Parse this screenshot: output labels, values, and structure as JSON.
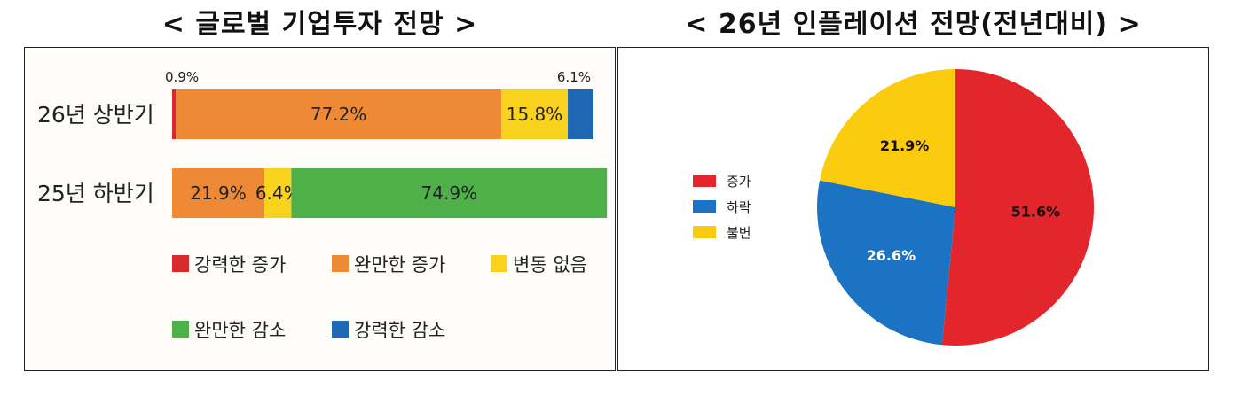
{
  "chart_data": [
    {
      "type": "bar",
      "orientation": "horizontal",
      "stacked": true,
      "title": "< 글로벌 기업투자 전망 >",
      "categories": [
        "26년 상반기",
        "25년 하반기"
      ],
      "series": [
        {
          "name": "강력한 증가",
          "color": "#d92b2b",
          "values": [
            0.9,
            0
          ]
        },
        {
          "name": "완만한 증가",
          "color": "#ee8a35",
          "values": [
            77.2,
            21.9
          ]
        },
        {
          "name": "변동 없음",
          "color": "#f8d21d",
          "values": [
            15.8,
            6.4
          ]
        },
        {
          "name": "완만한 감소",
          "color": "#4fb049",
          "values": [
            0,
            74.9
          ]
        },
        {
          "name": "강력한 감소",
          "color": "#1f66b3",
          "values": [
            6.1,
            0
          ]
        }
      ],
      "data_labels": [
        [
          "0.9%",
          "77.2%",
          "15.8%",
          "",
          "6.1%"
        ],
        [
          "",
          "21.9%",
          "6.4%",
          "74.9%",
          ""
        ]
      ],
      "xlim": [
        0,
        100
      ],
      "legend_position": "bottom"
    },
    {
      "type": "pie",
      "title": "< 26년 인플레이션 전망(전년대비) >",
      "labels": [
        "증가",
        "하락",
        "불변"
      ],
      "values": [
        51.6,
        26.6,
        21.9
      ],
      "value_labels": [
        "51.6%",
        "26.6%",
        "21.9%"
      ],
      "colors": [
        "#e3262b",
        "#1c73c4",
        "#fbcb0e"
      ],
      "legend_position": "left"
    }
  ]
}
